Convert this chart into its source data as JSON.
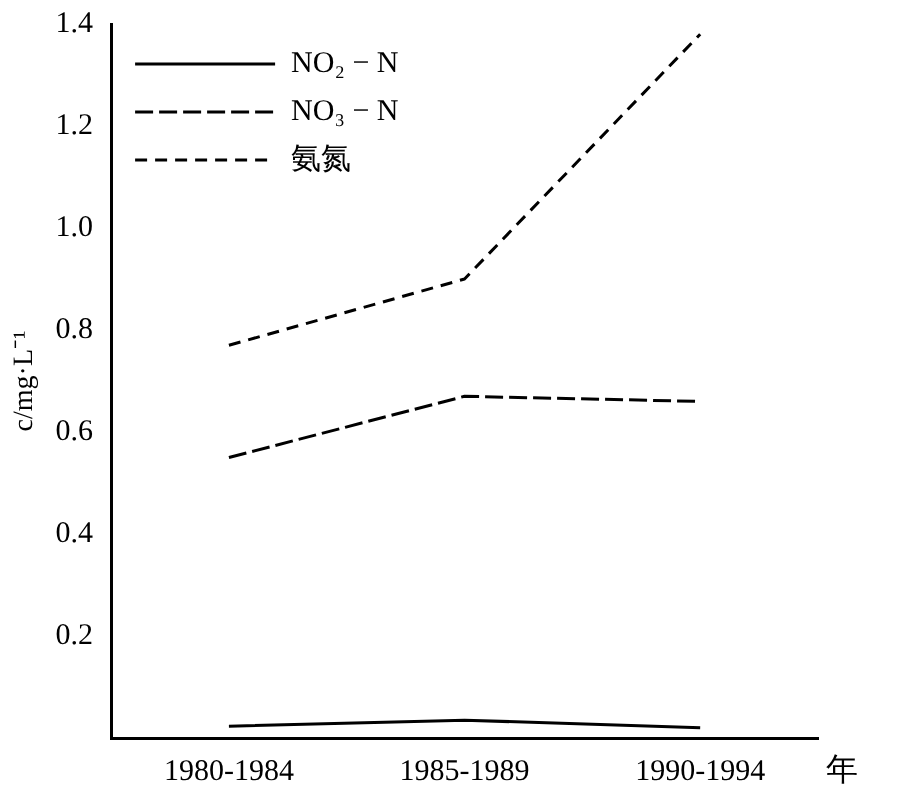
{
  "chart_data": {
    "type": "line",
    "xlabel": "年",
    "ylabel": "c/mg·L⁻¹",
    "categories": [
      "1980-1984",
      "1985-1989",
      "1990-1994"
    ],
    "series": [
      {
        "name": "NO₂ − N",
        "color": "#000000",
        "line_style": "solid",
        "values": [
          0.023,
          0.035,
          0.02
        ]
      },
      {
        "name": "NO₃ − N",
        "color": "#000000",
        "line_style": "dashed",
        "values": [
          0.55,
          0.67,
          0.66
        ]
      },
      {
        "name": "氨氮",
        "color": "#000000",
        "line_style": "dotted",
        "values": [
          0.77,
          0.9,
          1.38
        ]
      }
    ],
    "ylim": [
      0,
      1.4
    ],
    "yticks": [
      0.2,
      0.4,
      0.6,
      0.8,
      {
        "value": 1,
        "label": "1.0"
      },
      1.2,
      1.4
    ],
    "grid": false,
    "legend": "top left",
    "marker": "none"
  }
}
